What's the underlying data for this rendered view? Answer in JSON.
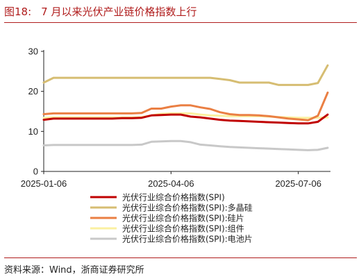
{
  "header": {
    "figure_no": "图18:",
    "title": "7 月以来光伏产业链价格指数上行"
  },
  "footer": {
    "source": "资料来源：Wind，浙商证券研究所"
  },
  "chart_data": {
    "type": "line",
    "title": "",
    "xlabel": "",
    "ylabel": "",
    "ylim": [
      0,
      30
    ],
    "yticks": [
      "0",
      "10",
      "20",
      "30"
    ],
    "xticks": [
      {
        "label": "2025-01-06",
        "x": 0
      },
      {
        "label": "2025-04-06",
        "x": 13
      },
      {
        "label": "2025-07-06",
        "x": 26
      }
    ],
    "x": [
      0,
      1,
      2,
      3,
      4,
      5,
      6,
      7,
      8,
      9,
      10,
      11,
      12,
      13,
      14,
      15,
      16,
      17,
      18,
      19,
      20,
      21,
      22,
      23,
      24,
      25,
      26,
      27,
      28,
      29
    ],
    "grid": false,
    "legend_position": "bottom",
    "series": [
      {
        "name": "光伏行业综合价格指数(SPI)",
        "color": "#c00000",
        "values": [
          12.9,
          13.2,
          13.2,
          13.2,
          13.2,
          13.2,
          13.2,
          13.2,
          13.3,
          13.3,
          13.4,
          14.0,
          14.1,
          14.2,
          14.2,
          13.7,
          13.5,
          13.2,
          12.9,
          12.7,
          12.6,
          12.5,
          12.4,
          12.3,
          12.2,
          12.1,
          12.0,
          12.0,
          12.4,
          14.2
        ]
      },
      {
        "name": "光伏行业综合价格指数(SPI):多晶硅",
        "color": "#d6bd72",
        "values": [
          22.2,
          23.4,
          23.4,
          23.4,
          23.4,
          23.4,
          23.4,
          23.4,
          23.4,
          23.4,
          23.4,
          23.4,
          23.4,
          23.4,
          23.4,
          23.4,
          23.4,
          23.4,
          23.1,
          22.8,
          22.2,
          22.2,
          22.2,
          22.2,
          21.6,
          21.6,
          21.6,
          21.6,
          22.1,
          26.5
        ]
      },
      {
        "name": "光伏行业综合价格指数(SPI):硅片",
        "color": "#ea7f43",
        "values": [
          14.3,
          14.5,
          14.5,
          14.5,
          14.5,
          14.5,
          14.5,
          14.5,
          14.5,
          14.5,
          14.6,
          15.7,
          15.7,
          16.2,
          16.5,
          16.5,
          16.0,
          15.6,
          14.8,
          14.3,
          14.1,
          14.1,
          14.0,
          13.8,
          13.5,
          13.2,
          13.0,
          12.8,
          13.9,
          19.7
        ]
      },
      {
        "name": "光伏行业综合价格指数(SPI):组件",
        "color": "#fbf0a0",
        "values": [
          13.4,
          13.5,
          13.5,
          13.5,
          13.5,
          13.5,
          13.5,
          13.5,
          13.5,
          13.5,
          13.6,
          14.0,
          14.4,
          14.5,
          14.5,
          14.5,
          14.2,
          14.0,
          13.9,
          13.8,
          13.8,
          13.8,
          13.8,
          13.7,
          13.6,
          13.5,
          13.4,
          13.4,
          13.4,
          13.5
        ]
      },
      {
        "name": "光伏行业综合价格指数(SPI):电池片",
        "color": "#c8c8c8",
        "values": [
          6.5,
          6.6,
          6.6,
          6.6,
          6.6,
          6.6,
          6.6,
          6.6,
          6.6,
          6.6,
          6.7,
          7.4,
          7.5,
          7.6,
          7.6,
          7.3,
          6.7,
          6.5,
          6.3,
          6.1,
          6.0,
          5.9,
          5.8,
          5.7,
          5.6,
          5.5,
          5.4,
          5.3,
          5.4,
          5.9
        ]
      }
    ]
  }
}
